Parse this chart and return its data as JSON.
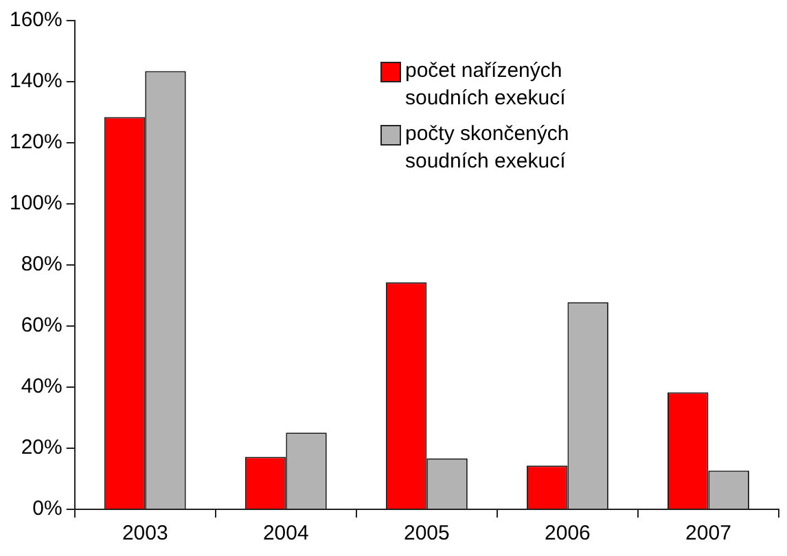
{
  "chart_data": {
    "type": "bar",
    "categories": [
      "2003",
      "2004",
      "2005",
      "2006",
      "2007"
    ],
    "series": [
      {
        "name": "počet nařízených soudních exekucí",
        "color": "#ff0000",
        "values": [
          128.4,
          17.2,
          74.3,
          14.3,
          38.3
        ]
      },
      {
        "name": "počty skončených soudních exekucí",
        "color": "#b3b3b3",
        "values": [
          143.5,
          25.1,
          16.7,
          67.8,
          12.7
        ]
      }
    ],
    "ylim": [
      0,
      160
    ],
    "yticks": [
      {
        "value": 0,
        "label": "0%"
      },
      {
        "value": 20,
        "label": "20%"
      },
      {
        "value": 40,
        "label": "40%"
      },
      {
        "value": 60,
        "label": "60%"
      },
      {
        "value": 80,
        "label": "80%"
      },
      {
        "value": 100,
        "label": "100%"
      },
      {
        "value": 120,
        "label": "120%"
      },
      {
        "value": 140,
        "label": "140%"
      },
      {
        "value": 160,
        "label": "160%"
      }
    ],
    "grid": false,
    "legend": "top right"
  }
}
